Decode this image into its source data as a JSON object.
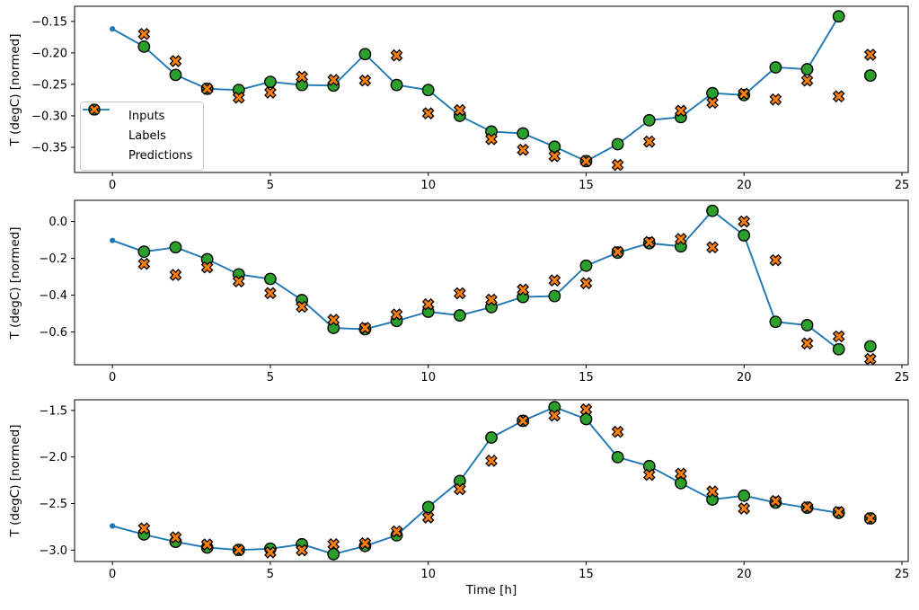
{
  "figure": {
    "xlabel": "Time [h]",
    "ylabel": "T (degC) [normed]",
    "x_ticks": {
      "values": [
        0,
        5,
        10,
        15,
        20,
        25
      ],
      "labels": [
        "0",
        "5",
        "10",
        "15",
        "20",
        "25"
      ]
    },
    "legend": {
      "items": [
        {
          "name": "Inputs",
          "marker": "line-with-dot"
        },
        {
          "name": "Labels",
          "marker": "circle"
        },
        {
          "name": "Predictions",
          "marker": "x-cross"
        }
      ]
    },
    "colors": {
      "inputs": "#1f77b4",
      "labels": "#2ca02c",
      "predictions": "#ff7f0e",
      "marker_edge": "#000000",
      "spine": "#000000",
      "legend_border": "#cccccc"
    }
  },
  "chart_data": [
    {
      "type": "line",
      "panel": 1,
      "ylabel": "T (degC) [normed]",
      "xlim": [
        -1.2,
        25.2
      ],
      "ylim": [
        -0.39,
        -0.126
      ],
      "y_ticks": {
        "values": [
          -0.15,
          -0.2,
          -0.25,
          -0.3,
          -0.35
        ],
        "labels": [
          "−0.15",
          "−0.20",
          "−0.25",
          "−0.30",
          "−0.35"
        ]
      },
      "series": [
        {
          "name": "Inputs",
          "style": "line-with-dot",
          "x": [
            0,
            1,
            2,
            3,
            4,
            5,
            6,
            7,
            8,
            9,
            10,
            11,
            12,
            13,
            14,
            15,
            16,
            17,
            18,
            19,
            20,
            21,
            22,
            23
          ],
          "values": [
            -0.162,
            -0.19,
            -0.235,
            -0.257,
            -0.259,
            -0.246,
            -0.251,
            -0.252,
            -0.202,
            -0.251,
            -0.259,
            -0.3,
            -0.325,
            -0.328,
            -0.349,
            -0.372,
            -0.345,
            -0.307,
            -0.302,
            -0.264,
            -0.267,
            -0.223,
            -0.226,
            -0.142
          ]
        },
        {
          "name": "Labels",
          "style": "circle",
          "x": [
            1,
            2,
            3,
            4,
            5,
            6,
            7,
            8,
            9,
            10,
            11,
            12,
            13,
            14,
            15,
            16,
            17,
            18,
            19,
            20,
            21,
            22,
            23,
            24
          ],
          "values": [
            -0.19,
            -0.235,
            -0.257,
            -0.259,
            -0.246,
            -0.251,
            -0.252,
            -0.202,
            -0.251,
            -0.259,
            -0.3,
            -0.325,
            -0.328,
            -0.349,
            -0.372,
            -0.345,
            -0.307,
            -0.302,
            -0.264,
            -0.267,
            -0.223,
            -0.226,
            -0.142,
            -0.236
          ]
        },
        {
          "name": "Predictions",
          "style": "x-cross",
          "x": [
            1,
            2,
            3,
            4,
            5,
            6,
            7,
            8,
            9,
            10,
            11,
            12,
            13,
            14,
            15,
            16,
            17,
            18,
            19,
            20,
            21,
            22,
            23,
            24
          ],
          "values": [
            -0.17,
            -0.213,
            -0.257,
            -0.271,
            -0.263,
            -0.238,
            -0.243,
            -0.244,
            -0.204,
            -0.296,
            -0.291,
            -0.337,
            -0.354,
            -0.364,
            -0.372,
            -0.378,
            -0.341,
            -0.292,
            -0.279,
            -0.265,
            -0.274,
            -0.244,
            -0.269,
            -0.203
          ]
        }
      ]
    },
    {
      "type": "line",
      "panel": 2,
      "ylabel": "T (degC) [normed]",
      "xlim": [
        -1.2,
        25.2
      ],
      "ylim": [
        -0.778,
        0.115
      ],
      "y_ticks": {
        "values": [
          0.0,
          -0.2,
          -0.4,
          -0.6
        ],
        "labels": [
          "0.0",
          "−0.2",
          "−0.4",
          "−0.6"
        ]
      },
      "series": [
        {
          "name": "Inputs",
          "style": "line-with-dot",
          "x": [
            0,
            1,
            2,
            3,
            4,
            5,
            6,
            7,
            8,
            9,
            10,
            11,
            12,
            13,
            14,
            15,
            16,
            17,
            18,
            19,
            20,
            21,
            22,
            23
          ],
          "values": [
            -0.103,
            -0.164,
            -0.14,
            -0.205,
            -0.287,
            -0.312,
            -0.427,
            -0.578,
            -0.585,
            -0.54,
            -0.49,
            -0.51,
            -0.465,
            -0.41,
            -0.405,
            -0.24,
            -0.169,
            -0.118,
            -0.135,
            0.058,
            -0.075,
            -0.545,
            -0.563,
            -0.694
          ]
        },
        {
          "name": "Labels",
          "style": "circle",
          "x": [
            1,
            2,
            3,
            4,
            5,
            6,
            7,
            8,
            9,
            10,
            11,
            12,
            13,
            14,
            15,
            16,
            17,
            18,
            19,
            20,
            21,
            22,
            23,
            24
          ],
          "values": [
            -0.164,
            -0.14,
            -0.205,
            -0.287,
            -0.312,
            -0.427,
            -0.578,
            -0.585,
            -0.54,
            -0.49,
            -0.51,
            -0.465,
            -0.41,
            -0.405,
            -0.24,
            -0.169,
            -0.118,
            -0.135,
            0.058,
            -0.075,
            -0.545,
            -0.563,
            -0.694,
            -0.678
          ]
        },
        {
          "name": "Predictions",
          "style": "x-cross",
          "x": [
            1,
            2,
            3,
            4,
            5,
            6,
            7,
            8,
            9,
            10,
            11,
            12,
            13,
            14,
            15,
            16,
            17,
            18,
            19,
            20,
            21,
            22,
            23,
            24
          ],
          "values": [
            -0.23,
            -0.29,
            -0.249,
            -0.325,
            -0.389,
            -0.463,
            -0.534,
            -0.578,
            -0.505,
            -0.45,
            -0.39,
            -0.425,
            -0.37,
            -0.32,
            -0.335,
            -0.165,
            -0.112,
            -0.095,
            -0.14,
            0.0,
            -0.21,
            -0.662,
            -0.624,
            -0.747
          ]
        }
      ]
    },
    {
      "type": "line",
      "panel": 3,
      "ylabel": "T (degC) [normed]",
      "xlabel": "Time [h]",
      "xlim": [
        -1.2,
        25.2
      ],
      "ylim": [
        -3.122,
        -1.386
      ],
      "y_ticks": {
        "values": [
          -1.5,
          -2.0,
          -2.5,
          -3.0
        ],
        "labels": [
          "−1.5",
          "−2.0",
          "−2.5",
          "−3.0"
        ]
      },
      "series": [
        {
          "name": "Inputs",
          "style": "line-with-dot",
          "x": [
            0,
            1,
            2,
            3,
            4,
            5,
            6,
            7,
            8,
            9,
            10,
            11,
            12,
            13,
            14,
            15,
            16,
            17,
            18,
            19,
            20,
            21,
            22,
            23
          ],
          "values": [
            -2.741,
            -2.832,
            -2.911,
            -2.972,
            -2.998,
            -2.985,
            -2.937,
            -3.043,
            -2.956,
            -2.841,
            -2.537,
            -2.258,
            -1.791,
            -1.612,
            -1.465,
            -1.593,
            -2.002,
            -2.098,
            -2.281,
            -2.457,
            -2.415,
            -2.49,
            -2.545,
            -2.6
          ]
        },
        {
          "name": "Labels",
          "style": "circle",
          "x": [
            1,
            2,
            3,
            4,
            5,
            6,
            7,
            8,
            9,
            10,
            11,
            12,
            13,
            14,
            15,
            16,
            17,
            18,
            19,
            20,
            21,
            22,
            23,
            24
          ],
          "values": [
            -2.832,
            -2.911,
            -2.972,
            -2.998,
            -2.985,
            -2.937,
            -3.043,
            -2.956,
            -2.841,
            -2.537,
            -2.258,
            -1.791,
            -1.612,
            -1.465,
            -1.593,
            -2.002,
            -2.098,
            -2.281,
            -2.457,
            -2.415,
            -2.49,
            -2.545,
            -2.6,
            -2.659
          ]
        },
        {
          "name": "Predictions",
          "style": "x-cross",
          "x": [
            1,
            2,
            3,
            4,
            5,
            6,
            7,
            8,
            9,
            10,
            11,
            12,
            13,
            14,
            15,
            16,
            17,
            18,
            19,
            20,
            21,
            22,
            23,
            24
          ],
          "values": [
            -2.767,
            -2.863,
            -2.94,
            -2.998,
            -3.024,
            -3.001,
            -2.937,
            -2.927,
            -2.799,
            -2.649,
            -2.345,
            -2.041,
            -1.612,
            -1.555,
            -1.49,
            -1.73,
            -2.191,
            -2.179,
            -2.371,
            -2.553,
            -2.473,
            -2.54,
            -2.59,
            -2.659
          ]
        }
      ]
    }
  ]
}
